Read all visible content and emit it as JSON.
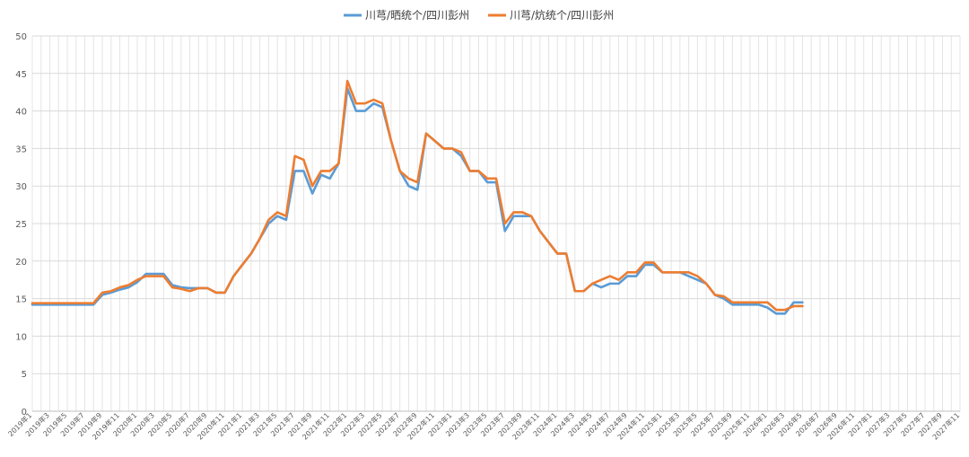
{
  "chart_data": {
    "type": "line",
    "title": "",
    "xlabel": "",
    "ylabel": "",
    "ylim": [
      0,
      50
    ],
    "yticks": [
      0,
      5,
      10,
      15,
      20,
      25,
      30,
      35,
      40,
      45,
      50
    ],
    "grid": true,
    "legend_position": "top",
    "x_tick_labels": [
      "2019年1",
      "2019年3",
      "2019年5",
      "2019年7",
      "2019年9",
      "2019年11",
      "2020年1",
      "2020年3",
      "2020年5",
      "2020年7",
      "2020年9",
      "2020年11",
      "2021年1",
      "2021年3",
      "2021年5",
      "2021年7",
      "2021年9",
      "2021年11",
      "2022年1",
      "2022年3",
      "2022年5",
      "2022年7",
      "2022年9",
      "2022年11",
      "2023年1",
      "2023年3",
      "2023年5",
      "2023年7",
      "2023年9",
      "2023年11",
      "2024年1",
      "2024年3",
      "2024年5",
      "2024年7",
      "2024年9",
      "2024年11",
      "2025年1",
      "2025年3",
      "2025年5",
      "2025年7",
      "2025年9",
      "2025年11",
      "2026年1",
      "2026年3",
      "2026年5",
      "2026年7",
      "2026年9",
      "2026年11",
      "2027年1",
      "2027年3",
      "2027年5",
      "2027年7",
      "2027年9",
      "2027年11"
    ],
    "series": [
      {
        "name": "川芎/晒统个/四川彭州",
        "color": "#5B9BD5",
        "points": [
          [
            "2019-01",
            14.2
          ],
          [
            "2019-05",
            14.2
          ],
          [
            "2019-08",
            14.2
          ],
          [
            "2019-09",
            15.5
          ],
          [
            "2019-10",
            15.8
          ],
          [
            "2019-11",
            16.2
          ],
          [
            "2019-12",
            16.5
          ],
          [
            "2020-01",
            17.2
          ],
          [
            "2020-02",
            18.3
          ],
          [
            "2020-03",
            18.3
          ],
          [
            "2020-04",
            18.3
          ],
          [
            "2020-05",
            16.8
          ],
          [
            "2020-06",
            16.5
          ],
          [
            "2020-07",
            16.4
          ],
          [
            "2020-08",
            16.4
          ],
          [
            "2020-09",
            16.4
          ],
          [
            "2020-10",
            15.8
          ],
          [
            "2020-11",
            15.8
          ],
          [
            "2020-12",
            18.0
          ],
          [
            "2021-01",
            19.5
          ],
          [
            "2021-02",
            21.0
          ],
          [
            "2021-03",
            23.0
          ],
          [
            "2021-04",
            25.0
          ],
          [
            "2021-05",
            26.0
          ],
          [
            "2021-06",
            25.5
          ],
          [
            "2021-07",
            32.0
          ],
          [
            "2021-08",
            32.0
          ],
          [
            "2021-09",
            29.0
          ],
          [
            "2021-10",
            31.5
          ],
          [
            "2021-11",
            31.0
          ],
          [
            "2021-12",
            33.0
          ],
          [
            "2022-01",
            43.0
          ],
          [
            "2022-02",
            40.0
          ],
          [
            "2022-03",
            40.0
          ],
          [
            "2022-04",
            41.0
          ],
          [
            "2022-05",
            40.5
          ],
          [
            "2022-06",
            36.0
          ],
          [
            "2022-07",
            32.0
          ],
          [
            "2022-08",
            30.0
          ],
          [
            "2022-09",
            29.5
          ],
          [
            "2022-10",
            37.0
          ],
          [
            "2022-11",
            36.0
          ],
          [
            "2022-12",
            35.0
          ],
          [
            "2023-01",
            35.0
          ],
          [
            "2023-02",
            34.0
          ],
          [
            "2023-03",
            32.0
          ],
          [
            "2023-04",
            32.0
          ],
          [
            "2023-05",
            30.5
          ],
          [
            "2023-06",
            30.5
          ],
          [
            "2023-07",
            24.0
          ],
          [
            "2023-08",
            26.0
          ],
          [
            "2023-09",
            26.0
          ],
          [
            "2023-10",
            26.0
          ],
          [
            "2023-11",
            24.0
          ],
          [
            "2023-12",
            22.5
          ],
          [
            "2024-01",
            21.0
          ],
          [
            "2024-02",
            21.0
          ],
          [
            "2024-03",
            16.0
          ],
          [
            "2024-04",
            16.0
          ],
          [
            "2024-05",
            17.0
          ],
          [
            "2024-06",
            16.5
          ],
          [
            "2024-07",
            17.0
          ],
          [
            "2024-08",
            17.0
          ],
          [
            "2024-09",
            18.0
          ],
          [
            "2024-10",
            18.0
          ],
          [
            "2024-11",
            19.5
          ],
          [
            "2024-12",
            19.5
          ],
          [
            "2025-01",
            18.5
          ],
          [
            "2025-02",
            18.5
          ],
          [
            "2025-03",
            18.5
          ],
          [
            "2025-04",
            18.0
          ],
          [
            "2025-05",
            17.5
          ],
          [
            "2025-06",
            17.0
          ],
          [
            "2025-07",
            15.5
          ],
          [
            "2025-08",
            15.0
          ],
          [
            "2025-09",
            14.2
          ],
          [
            "2025-10",
            14.2
          ],
          [
            "2025-11",
            14.2
          ],
          [
            "2025-12",
            14.2
          ],
          [
            "2026-01",
            13.8
          ],
          [
            "2026-02",
            13.0
          ],
          [
            "2026-03",
            13.0
          ],
          [
            "2026-04",
            14.5
          ],
          [
            "2026-05",
            14.5
          ]
        ]
      },
      {
        "name": "川芎/炕统个/四川彭州",
        "color": "#ED7D31",
        "points": [
          [
            "2019-01",
            14.4
          ],
          [
            "2019-05",
            14.4
          ],
          [
            "2019-08",
            14.4
          ],
          [
            "2019-09",
            15.8
          ],
          [
            "2019-10",
            16.0
          ],
          [
            "2019-11",
            16.5
          ],
          [
            "2019-12",
            16.8
          ],
          [
            "2020-01",
            17.5
          ],
          [
            "2020-02",
            18.0
          ],
          [
            "2020-03",
            18.0
          ],
          [
            "2020-04",
            18.0
          ],
          [
            "2020-05",
            16.5
          ],
          [
            "2020-06",
            16.3
          ],
          [
            "2020-07",
            16.0
          ],
          [
            "2020-08",
            16.4
          ],
          [
            "2020-09",
            16.4
          ],
          [
            "2020-10",
            15.8
          ],
          [
            "2020-11",
            15.8
          ],
          [
            "2020-12",
            18.0
          ],
          [
            "2021-01",
            19.5
          ],
          [
            "2021-02",
            21.0
          ],
          [
            "2021-03",
            23.0
          ],
          [
            "2021-04",
            25.5
          ],
          [
            "2021-05",
            26.5
          ],
          [
            "2021-06",
            26.0
          ],
          [
            "2021-07",
            34.0
          ],
          [
            "2021-08",
            33.5
          ],
          [
            "2021-09",
            30.0
          ],
          [
            "2021-10",
            32.0
          ],
          [
            "2021-11",
            32.0
          ],
          [
            "2021-12",
            33.0
          ],
          [
            "2022-01",
            44.0
          ],
          [
            "2022-02",
            41.0
          ],
          [
            "2022-03",
            41.0
          ],
          [
            "2022-04",
            41.5
          ],
          [
            "2022-05",
            41.0
          ],
          [
            "2022-06",
            36.0
          ],
          [
            "2022-07",
            32.0
          ],
          [
            "2022-08",
            31.0
          ],
          [
            "2022-09",
            30.5
          ],
          [
            "2022-10",
            37.0
          ],
          [
            "2022-11",
            36.0
          ],
          [
            "2022-12",
            35.0
          ],
          [
            "2023-01",
            35.0
          ],
          [
            "2023-02",
            34.5
          ],
          [
            "2023-03",
            32.0
          ],
          [
            "2023-04",
            32.0
          ],
          [
            "2023-05",
            31.0
          ],
          [
            "2023-06",
            31.0
          ],
          [
            "2023-07",
            25.0
          ],
          [
            "2023-08",
            26.5
          ],
          [
            "2023-09",
            26.5
          ],
          [
            "2023-10",
            26.0
          ],
          [
            "2023-11",
            24.0
          ],
          [
            "2023-12",
            22.5
          ],
          [
            "2024-01",
            21.0
          ],
          [
            "2024-02",
            21.0
          ],
          [
            "2024-03",
            16.0
          ],
          [
            "2024-04",
            16.0
          ],
          [
            "2024-05",
            17.0
          ],
          [
            "2024-06",
            17.5
          ],
          [
            "2024-07",
            18.0
          ],
          [
            "2024-08",
            17.5
          ],
          [
            "2024-09",
            18.5
          ],
          [
            "2024-10",
            18.5
          ],
          [
            "2024-11",
            19.8
          ],
          [
            "2024-12",
            19.8
          ],
          [
            "2025-01",
            18.5
          ],
          [
            "2025-02",
            18.5
          ],
          [
            "2025-03",
            18.5
          ],
          [
            "2025-04",
            18.5
          ],
          [
            "2025-05",
            18.0
          ],
          [
            "2025-06",
            17.0
          ],
          [
            "2025-07",
            15.5
          ],
          [
            "2025-08",
            15.3
          ],
          [
            "2025-09",
            14.5
          ],
          [
            "2025-10",
            14.5
          ],
          [
            "2025-11",
            14.5
          ],
          [
            "2025-12",
            14.5
          ],
          [
            "2026-01",
            14.5
          ],
          [
            "2026-02",
            13.5
          ],
          [
            "2026-03",
            13.5
          ],
          [
            "2026-04",
            14.0
          ],
          [
            "2026-05",
            14.0
          ]
        ]
      }
    ]
  }
}
